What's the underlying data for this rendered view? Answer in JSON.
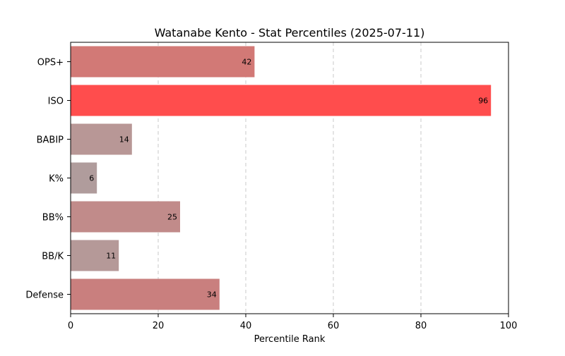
{
  "chart_data": {
    "type": "bar",
    "orientation": "horizontal",
    "title": "Watanabe Kento - Stat Percentiles (2025-07-11)",
    "xlabel": "Percentile Rank",
    "ylabel": "",
    "xlim": [
      0,
      100
    ],
    "xticks": [
      0,
      20,
      40,
      60,
      80,
      100
    ],
    "grid": "x-dashed",
    "categories": [
      "OPS+",
      "ISO",
      "BABIP",
      "K%",
      "BB%",
      "BB/K",
      "Defense"
    ],
    "values": [
      42,
      96,
      14,
      6,
      25,
      11,
      34
    ],
    "colors": [
      "#d27976",
      "#ff4d4d",
      "#b89796",
      "#b09c9c",
      "#c18b8a",
      "#b59998",
      "#c97f7e"
    ]
  }
}
